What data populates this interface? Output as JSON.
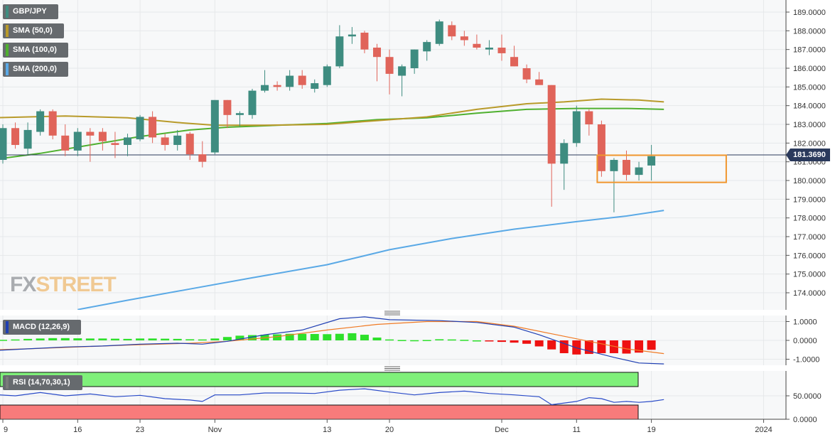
{
  "legends": {
    "pair": {
      "label": "GBP/JPY",
      "color": "#3e8c80"
    },
    "sma50": {
      "label": "SMA (50,0)",
      "color": "#b89a2a"
    },
    "sma100": {
      "label": "SMA (100,0)",
      "color": "#4fb02f"
    },
    "sma200": {
      "label": "SMA (200,0)",
      "color": "#5aa9e6"
    },
    "macd": {
      "label": "MACD (12,26,9)",
      "color": "#1f3fb3"
    },
    "rsi": {
      "label": "RSI (14,70,30,1)",
      "color": "#7a7a7a"
    }
  },
  "last_price_label": "181.3690",
  "watermark": {
    "fx": "FX",
    "street": "STREET"
  },
  "colors": {
    "up": "#3e8c80",
    "down": "#e0645a",
    "grid": "#e6e8ea",
    "panel_bg": "#f7f8f9"
  },
  "chart_data": {
    "type": "candlestick",
    "title": "",
    "price_axis": {
      "ticks": [
        189,
        188,
        187,
        186,
        185,
        184,
        183,
        182,
        181,
        180,
        179,
        178,
        177,
        176,
        175,
        174
      ],
      "tick_labels": [
        "189.0000",
        "188.0000",
        "187.0000",
        "186.0000",
        "185.0000",
        "184.0000",
        "183.0000",
        "182.0000",
        "181.0000",
        "180.0000",
        "179.0000",
        "178.0000",
        "177.0000",
        "176.0000",
        "175.0000",
        "174.0000"
      ],
      "ylim": [
        173.2,
        189.55
      ]
    },
    "x_axis": {
      "tick_labels": [
        "9",
        "16",
        "23",
        "Nov",
        "13",
        "20",
        "Dec",
        "11",
        "19",
        "2024"
      ],
      "tick_index": [
        0,
        6,
        11,
        17,
        26,
        31,
        40,
        46,
        52,
        61
      ],
      "index_range": [
        -1,
        63
      ]
    },
    "last_price": 181.369,
    "candles": [
      {
        "o": 181.1,
        "h": 183.0,
        "l": 180.9,
        "c": 182.8
      },
      {
        "o": 182.8,
        "h": 183.1,
        "l": 181.7,
        "c": 181.9
      },
      {
        "o": 181.7,
        "h": 183.1,
        "l": 181.4,
        "c": 182.7
      },
      {
        "o": 182.6,
        "h": 183.8,
        "l": 182.4,
        "c": 183.7
      },
      {
        "o": 183.7,
        "h": 183.8,
        "l": 182.2,
        "c": 182.4
      },
      {
        "o": 182.4,
        "h": 183.0,
        "l": 181.3,
        "c": 181.6
      },
      {
        "o": 181.6,
        "h": 182.8,
        "l": 181.3,
        "c": 182.6
      },
      {
        "o": 182.6,
        "h": 182.8,
        "l": 181.0,
        "c": 182.4
      },
      {
        "o": 182.6,
        "h": 182.8,
        "l": 181.6,
        "c": 182.1
      },
      {
        "o": 182.0,
        "h": 182.6,
        "l": 181.2,
        "c": 181.9
      },
      {
        "o": 181.9,
        "h": 182.5,
        "l": 181.3,
        "c": 182.3
      },
      {
        "o": 182.2,
        "h": 183.5,
        "l": 182.1,
        "c": 183.4
      },
      {
        "o": 183.4,
        "h": 183.7,
        "l": 182.0,
        "c": 182.3
      },
      {
        "o": 182.3,
        "h": 182.5,
        "l": 181.6,
        "c": 181.9
      },
      {
        "o": 181.9,
        "h": 182.7,
        "l": 181.6,
        "c": 182.4
      },
      {
        "o": 182.5,
        "h": 182.6,
        "l": 181.1,
        "c": 181.4
      },
      {
        "o": 181.4,
        "h": 182.1,
        "l": 180.7,
        "c": 181.0
      },
      {
        "o": 181.5,
        "h": 184.3,
        "l": 181.4,
        "c": 184.3
      },
      {
        "o": 184.3,
        "h": 184.3,
        "l": 182.8,
        "c": 183.5
      },
      {
        "o": 183.5,
        "h": 183.7,
        "l": 182.9,
        "c": 183.6
      },
      {
        "o": 183.5,
        "h": 184.9,
        "l": 183.3,
        "c": 184.8
      },
      {
        "o": 184.8,
        "h": 185.9,
        "l": 184.7,
        "c": 185.1
      },
      {
        "o": 185.1,
        "h": 185.3,
        "l": 184.8,
        "c": 185.0
      },
      {
        "o": 185.0,
        "h": 185.9,
        "l": 184.8,
        "c": 185.6
      },
      {
        "o": 185.6,
        "h": 185.9,
        "l": 184.9,
        "c": 185.1
      },
      {
        "o": 184.9,
        "h": 185.4,
        "l": 184.7,
        "c": 185.2
      },
      {
        "o": 185.1,
        "h": 186.2,
        "l": 185.0,
        "c": 186.1
      },
      {
        "o": 186.1,
        "h": 188.3,
        "l": 186.0,
        "c": 187.7
      },
      {
        "o": 187.7,
        "h": 188.2,
        "l": 187.3,
        "c": 187.8
      },
      {
        "o": 187.9,
        "h": 188.0,
        "l": 186.8,
        "c": 187.0
      },
      {
        "o": 187.1,
        "h": 187.3,
        "l": 185.3,
        "c": 186.6
      },
      {
        "o": 186.6,
        "h": 187.0,
        "l": 184.6,
        "c": 185.7
      },
      {
        "o": 185.6,
        "h": 186.2,
        "l": 184.5,
        "c": 186.1
      },
      {
        "o": 186.0,
        "h": 187.0,
        "l": 185.7,
        "c": 187.0
      },
      {
        "o": 186.9,
        "h": 187.5,
        "l": 186.4,
        "c": 187.4
      },
      {
        "o": 187.3,
        "h": 188.6,
        "l": 187.2,
        "c": 188.5
      },
      {
        "o": 188.3,
        "h": 188.5,
        "l": 187.5,
        "c": 187.7
      },
      {
        "o": 187.7,
        "h": 188.0,
        "l": 187.2,
        "c": 187.5
      },
      {
        "o": 187.3,
        "h": 187.8,
        "l": 187.0,
        "c": 187.1
      },
      {
        "o": 187.0,
        "h": 187.5,
        "l": 186.7,
        "c": 187.1
      },
      {
        "o": 187.1,
        "h": 187.8,
        "l": 186.4,
        "c": 186.8
      },
      {
        "o": 186.6,
        "h": 187.2,
        "l": 186.1,
        "c": 186.1
      },
      {
        "o": 186.0,
        "h": 186.2,
        "l": 185.2,
        "c": 185.4
      },
      {
        "o": 185.4,
        "h": 185.8,
        "l": 185.2,
        "c": 185.1
      },
      {
        "o": 185.1,
        "h": 185.1,
        "l": 178.6,
        "c": 180.9
      },
      {
        "o": 180.9,
        "h": 182.2,
        "l": 179.5,
        "c": 182.0
      },
      {
        "o": 182.0,
        "h": 184.0,
        "l": 181.8,
        "c": 183.7
      },
      {
        "o": 183.7,
        "h": 183.8,
        "l": 182.4,
        "c": 183.0
      },
      {
        "o": 183.0,
        "h": 183.2,
        "l": 180.2,
        "c": 180.5
      },
      {
        "o": 180.5,
        "h": 181.2,
        "l": 178.3,
        "c": 181.1
      },
      {
        "o": 181.1,
        "h": 181.6,
        "l": 180.0,
        "c": 180.3
      },
      {
        "o": 180.3,
        "h": 181.0,
        "l": 180.0,
        "c": 180.7
      },
      {
        "o": 180.8,
        "h": 181.9,
        "l": 180.0,
        "c": 181.3
      }
    ],
    "sma50": [
      [
        -1,
        183.35
      ],
      [
        5,
        183.45
      ],
      [
        10,
        183.35
      ],
      [
        14,
        183.1
      ],
      [
        17,
        182.95
      ],
      [
        21,
        182.95
      ],
      [
        26,
        183.0
      ],
      [
        30,
        183.2
      ],
      [
        34,
        183.4
      ],
      [
        38,
        183.8
      ],
      [
        42,
        184.1
      ],
      [
        45,
        184.2
      ],
      [
        48,
        184.35
      ],
      [
        51,
        184.3
      ],
      [
        52,
        184.25
      ],
      [
        53,
        184.2
      ]
    ],
    "sma100": [
      [
        -1,
        181.1
      ],
      [
        3,
        181.45
      ],
      [
        7,
        181.9
      ],
      [
        11,
        182.35
      ],
      [
        15,
        182.7
      ],
      [
        18,
        182.85
      ],
      [
        22,
        182.95
      ],
      [
        26,
        183.05
      ],
      [
        30,
        183.25
      ],
      [
        34,
        183.35
      ],
      [
        38,
        183.6
      ],
      [
        42,
        183.8
      ],
      [
        46,
        183.85
      ],
      [
        50,
        183.85
      ],
      [
        53,
        183.8
      ]
    ],
    "sma200": [
      [
        6,
        173.1
      ],
      [
        10,
        173.6
      ],
      [
        15,
        174.2
      ],
      [
        20,
        174.8
      ],
      [
        26,
        175.5
      ],
      [
        31,
        176.3
      ],
      [
        36,
        176.9
      ],
      [
        41,
        177.4
      ],
      [
        46,
        177.8
      ],
      [
        50,
        178.1
      ],
      [
        53,
        178.4
      ]
    ],
    "highlight_box": {
      "x_from": 48,
      "x_to": 58,
      "y_low": 179.9,
      "y_high": 181.35,
      "color": "#f0962e"
    },
    "macd": {
      "axis_ticks": [
        1.0,
        0.0,
        -1.0
      ],
      "tick_labels": [
        "1.0000",
        "0.0000",
        "-1.0000"
      ],
      "ylim": [
        -1.35,
        1.35
      ],
      "macd_line": [
        [
          -1,
          -0.55
        ],
        [
          2,
          -0.45
        ],
        [
          5,
          -0.35
        ],
        [
          8,
          -0.3
        ],
        [
          11,
          -0.2
        ],
        [
          14,
          -0.15
        ],
        [
          16,
          -0.2
        ],
        [
          18,
          -0.05
        ],
        [
          21,
          0.3
        ],
        [
          24,
          0.55
        ],
        [
          27,
          1.15
        ],
        [
          29,
          1.25
        ],
        [
          31,
          1.1
        ],
        [
          35,
          1.05
        ],
        [
          38,
          0.95
        ],
        [
          41,
          0.7
        ],
        [
          43,
          0.3
        ],
        [
          46,
          -0.4
        ],
        [
          49,
          -0.9
        ],
        [
          51,
          -1.2
        ],
        [
          53,
          -1.25
        ]
      ],
      "signal_line": [
        [
          -1,
          -0.5
        ],
        [
          2,
          -0.45
        ],
        [
          6,
          -0.35
        ],
        [
          10,
          -0.25
        ],
        [
          15,
          -0.15
        ],
        [
          18,
          -0.05
        ],
        [
          22,
          0.2
        ],
        [
          26,
          0.55
        ],
        [
          30,
          0.85
        ],
        [
          34,
          1.0
        ],
        [
          38,
          1.0
        ],
        [
          41,
          0.75
        ],
        [
          44,
          0.35
        ],
        [
          47,
          -0.05
        ],
        [
          50,
          -0.45
        ],
        [
          53,
          -0.7
        ]
      ],
      "histogram": [
        0.03,
        0.05,
        0.08,
        0.1,
        0.12,
        0.12,
        0.11,
        0.1,
        0.1,
        0.09,
        0.08,
        0.1,
        0.1,
        0.09,
        0.08,
        0.06,
        0.05,
        0.1,
        0.18,
        0.25,
        0.28,
        0.3,
        0.32,
        0.35,
        0.35,
        0.34,
        0.33,
        0.35,
        0.38,
        0.3,
        0.15,
        0.05,
        0.02,
        0.01,
        0.02,
        0.06,
        0.05,
        0.03,
        0.0,
        -0.03,
        -0.08,
        -0.12,
        -0.18,
        -0.32,
        -0.48,
        -0.68,
        -0.75,
        -0.72,
        -0.68,
        -0.68,
        -0.7,
        -0.65,
        -0.5
      ]
    },
    "rsi": {
      "axis_ticks": [
        50,
        0
      ],
      "tick_labels": [
        "50.0000",
        "0.0000"
      ],
      "ylim": [
        0,
        90
      ],
      "overbought": 70,
      "oversold": 30,
      "line": [
        [
          -1,
          53
        ],
        [
          1,
          50
        ],
        [
          3,
          57
        ],
        [
          5,
          50
        ],
        [
          7,
          54
        ],
        [
          9,
          48
        ],
        [
          11,
          51
        ],
        [
          13,
          44
        ],
        [
          15,
          41
        ],
        [
          16,
          38
        ],
        [
          17,
          52
        ],
        [
          19,
          52
        ],
        [
          21,
          56
        ],
        [
          23,
          56
        ],
        [
          25,
          55
        ],
        [
          27,
          62
        ],
        [
          29,
          65
        ],
        [
          31,
          58
        ],
        [
          33,
          52
        ],
        [
          35,
          57
        ],
        [
          37,
          60
        ],
        [
          39,
          55
        ],
        [
          41,
          52
        ],
        [
          43,
          48
        ],
        [
          44,
          31
        ],
        [
          46,
          38
        ],
        [
          47,
          46
        ],
        [
          48,
          44
        ],
        [
          49,
          36
        ],
        [
          50,
          38
        ],
        [
          51,
          36
        ],
        [
          52,
          38
        ],
        [
          53,
          42
        ]
      ]
    }
  }
}
